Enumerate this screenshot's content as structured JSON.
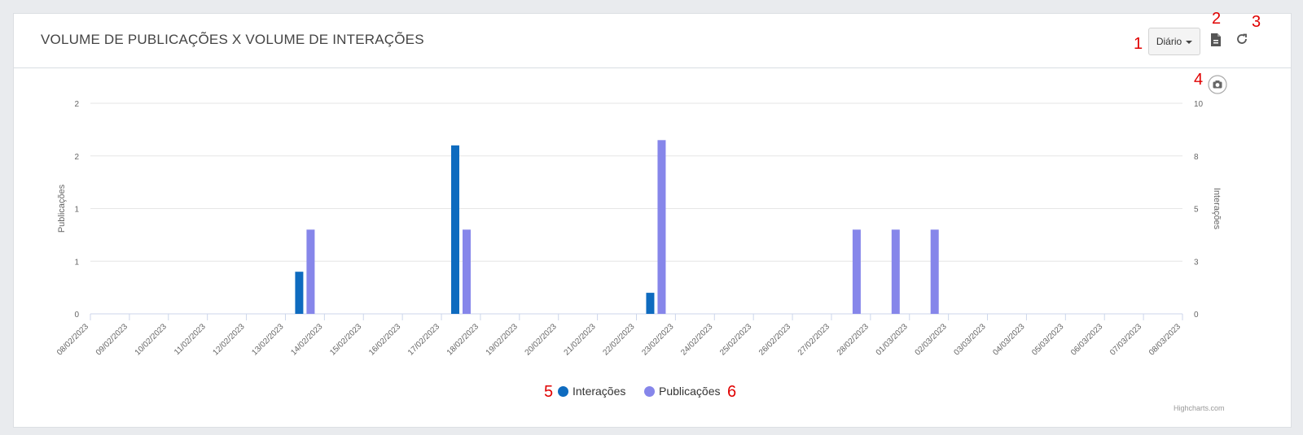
{
  "header": {
    "title": "VOLUME DE PUBLICAÇÕES X VOLUME DE INTERAÇÕES",
    "period_label": "Diário"
  },
  "icons": {
    "export": "pdf-export-icon",
    "refresh": "refresh-icon",
    "screenshot": "camera-icon"
  },
  "annotations": [
    "1",
    "2",
    "3",
    "4",
    "5",
    "6"
  ],
  "credits": "Highcharts.com",
  "chart_data": {
    "type": "bar",
    "categories": [
      "08/02/2023",
      "09/02/2023",
      "10/02/2023",
      "11/02/2023",
      "12/02/2023",
      "13/02/2023",
      "14/02/2023",
      "15/02/2023",
      "16/02/2023",
      "17/02/2023",
      "18/02/2023",
      "19/02/2023",
      "20/02/2023",
      "21/02/2023",
      "22/02/2023",
      "23/02/2023",
      "24/02/2023",
      "25/02/2023",
      "26/02/2023",
      "27/02/2023",
      "28/02/2023",
      "01/03/2023",
      "02/03/2023",
      "03/03/2023",
      "04/03/2023",
      "05/03/2023",
      "06/03/2023",
      "07/03/2023",
      "08/03/2023"
    ],
    "series": [
      {
        "name": "Interações",
        "axis": "left",
        "color": "#0e6bbf",
        "values": [
          0,
          0,
          0,
          0,
          0,
          0.4,
          0,
          0,
          0,
          1.6,
          0,
          0,
          0,
          0,
          0.2,
          0,
          0,
          0,
          0,
          0,
          0,
          0,
          0,
          0,
          0,
          0,
          0,
          0,
          0
        ]
      },
      {
        "name": "Publicações",
        "axis": "left",
        "color": "#8686ea",
        "values": [
          0,
          0,
          0,
          0,
          0,
          0.8,
          0,
          0,
          0,
          0.8,
          0,
          0,
          0,
          0,
          1.65,
          0,
          0,
          0,
          0,
          0.8,
          0.8,
          0.8,
          0,
          0,
          0,
          0,
          0,
          0,
          0
        ]
      }
    ],
    "yAxisLeft": {
      "label": "Publicações",
      "ticks": [
        "0",
        "1",
        "1",
        "2",
        "2"
      ],
      "range": [
        0,
        2
      ]
    },
    "yAxisRight": {
      "label": "Interações",
      "ticks": [
        "0",
        "3",
        "5",
        "8",
        "10"
      ],
      "range": [
        0,
        10
      ]
    },
    "grid": true,
    "legend": "bottom-center"
  }
}
